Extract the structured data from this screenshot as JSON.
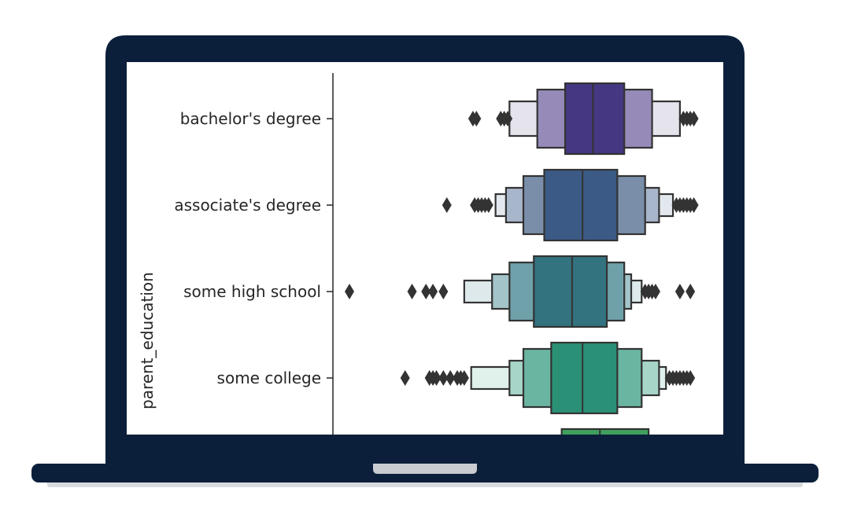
{
  "device": {
    "frame_color": "#0b1f3a",
    "screen_bg": "#ffffff",
    "notch_color": "#c9ccd1"
  },
  "chart_data": {
    "type": "boxen",
    "orientation": "horizontal",
    "ylabel": "parent_education",
    "xlabel": "",
    "xlim": [
      0,
      100
    ],
    "categories": [
      {
        "name": "bachelor's degree",
        "color": "#453781",
        "boxes": [
          {
            "lo": 62,
            "hi": 79,
            "color": "#453781"
          },
          {
            "lo": 54,
            "hi": 87,
            "color": "#968bb8"
          },
          {
            "lo": 46,
            "hi": 95,
            "color": "#e5e3ec"
          }
        ],
        "median": 70,
        "outliers": [
          35.5,
          36.5,
          43.5,
          44.5,
          45.5,
          96,
          97,
          98,
          99
        ]
      },
      {
        "name": "associate's degree",
        "color": "#3b5b86",
        "boxes": [
          {
            "lo": 56,
            "hi": 77,
            "color": "#3b5b86"
          },
          {
            "lo": 50,
            "hi": 85,
            "color": "#7a8eaa"
          },
          {
            "lo": 45,
            "hi": 89,
            "color": "#a8b6cb"
          },
          {
            "lo": 42,
            "hi": 93,
            "color": "#e3e8ef"
          }
        ],
        "median": 67,
        "outliers": [
          28,
          36,
          37,
          38,
          39,
          40,
          94,
          95,
          96,
          97,
          98,
          99
        ]
      },
      {
        "name": "some high school",
        "color": "#33727f",
        "boxes": [
          {
            "lo": 53,
            "hi": 74,
            "color": "#33727f"
          },
          {
            "lo": 46,
            "hi": 79,
            "color": "#6fa1aa"
          },
          {
            "lo": 41,
            "hi": 81,
            "color": "#a3c4c9"
          },
          {
            "lo": 33,
            "hi": 84,
            "color": "#dde9eb"
          }
        ],
        "median": 64,
        "outliers": [
          0,
          18,
          22,
          24,
          27,
          85,
          86,
          87,
          88,
          95,
          98
        ]
      },
      {
        "name": "some college",
        "color": "#2a9176",
        "boxes": [
          {
            "lo": 58,
            "hi": 77,
            "color": "#2a9176"
          },
          {
            "lo": 50,
            "hi": 84,
            "color": "#6ab5a1"
          },
          {
            "lo": 46,
            "hi": 89,
            "color": "#a7d6c9"
          },
          {
            "lo": 35,
            "hi": 91,
            "color": "#e0f1ec"
          }
        ],
        "median": 67,
        "outliers": [
          16,
          23,
          24,
          25,
          27,
          29,
          31,
          32,
          33,
          92,
          93,
          94,
          95,
          96,
          97,
          98
        ]
      },
      {
        "name": "",
        "color": "#3fa05d",
        "boxes": [
          {
            "lo": 61,
            "hi": 86,
            "color": "#3fa05d"
          }
        ],
        "median": 72,
        "outliers": []
      }
    ]
  }
}
